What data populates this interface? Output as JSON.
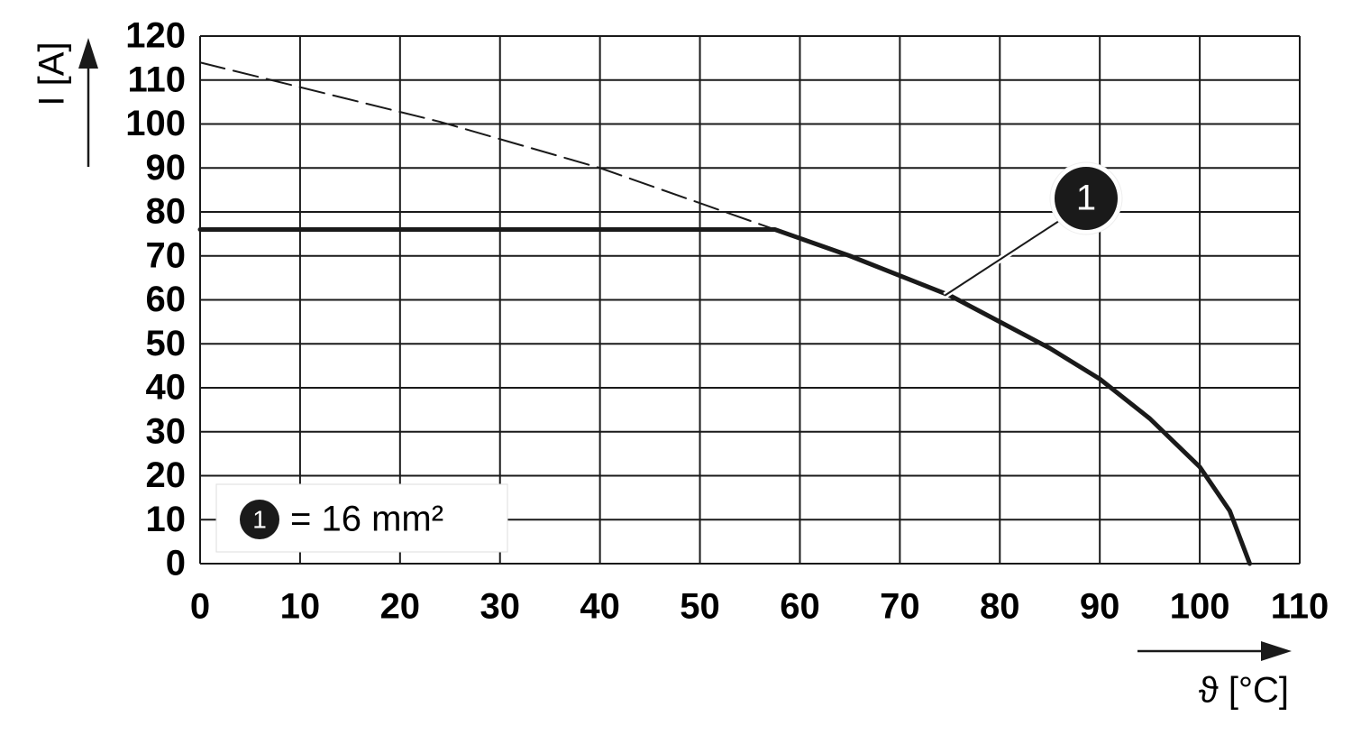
{
  "chart_data": {
    "type": "line",
    "xlabel": "ϑ [°C]",
    "ylabel": "I [A]",
    "xlim": [
      0,
      110
    ],
    "ylim": [
      0,
      120
    ],
    "xticks": [
      0,
      10,
      20,
      30,
      40,
      50,
      60,
      70,
      80,
      90,
      100,
      110
    ],
    "yticks": [
      0,
      10,
      20,
      30,
      40,
      50,
      60,
      70,
      80,
      90,
      100,
      110,
      120
    ],
    "grid": true,
    "legend": "lower left",
    "series": [
      {
        "name": "= 16 mm²",
        "marker_label": "1",
        "color": "#1a1a1a",
        "style": "solid",
        "x": [
          0,
          57.5,
          65,
          75,
          80,
          85,
          90,
          95,
          100,
          103,
          105
        ],
        "values": [
          76,
          76,
          70,
          61,
          55,
          49,
          42,
          33,
          22,
          12,
          0
        ]
      },
      {
        "color": "#1a1a1a",
        "style": "dashed",
        "x": [
          0,
          24,
          40,
          57.5
        ],
        "values": [
          114,
          100.5,
          90,
          76
        ]
      }
    ],
    "annotation": {
      "text": "1",
      "x": 74.5,
      "y": 61
    }
  }
}
